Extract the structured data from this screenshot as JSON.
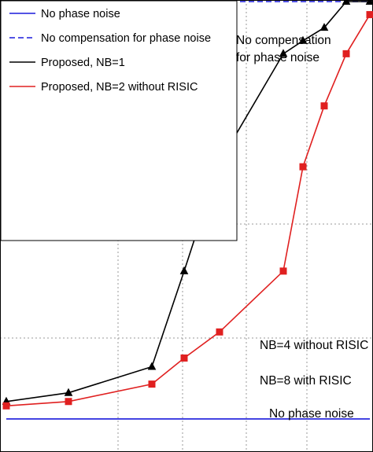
{
  "chart_data": {
    "type": "line",
    "title": "",
    "xlabel": "",
    "ylabel": "",
    "x": [
      1,
      2,
      3,
      4,
      5,
      6,
      7,
      8,
      9,
      10
    ],
    "xlim": [
      1,
      10
    ],
    "ylim": [
      0,
      1
    ],
    "grid": true,
    "legend_position": "top-left",
    "series": [
      {
        "name": "No phase noise",
        "label_html": "No phase noise",
        "color": "#1a1adc",
        "dash": "",
        "marker": "none",
        "values": [
          0.04,
          0.04,
          0.04,
          0.04,
          0.04,
          0.04,
          0.04,
          0.04,
          0.04,
          0.04
        ]
      },
      {
        "name": "No compensation for phase noise",
        "label_html": "No compensation for phase noise",
        "color": "#1a1adc",
        "dash": "7,4",
        "marker": "none",
        "values": [
          1.0,
          1.0,
          1.0,
          1.0,
          1.0,
          1.0,
          1.0,
          1.0,
          1.0,
          1.0
        ]
      },
      {
        "name": "Proposed, NB=1",
        "label_html": "Proposed, <i>N</i><sub>B</sub>=1",
        "color": "#000000",
        "dash": "",
        "marker": "triangle-up",
        "filled": true,
        "values": [
          0.08,
          0.1,
          0.16,
          0.38,
          0.63,
          0.88,
          0.91,
          0.94,
          1.0,
          1.0
        ]
      },
      {
        "name": "Proposed, NB=2 without RISIC",
        "label_html": "Proposed, <i>N</i><sub>B</sub>=2 without RISIC",
        "color": "#e02020",
        "dash": "",
        "marker": "square",
        "filled": true,
        "values": [
          0.07,
          0.08,
          0.12,
          0.18,
          0.24,
          0.38,
          0.62,
          0.76,
          0.88,
          0.97
        ]
      }
    ]
  },
  "legend": {
    "items": [
      {
        "html": "No phase noise"
      },
      {
        "html": "No compensation for phase noise"
      },
      {
        "html": "Proposed, <tspan font-style='italic'>N</tspan><tspan baseline-shift='sub' font-size='11'>B</tspan>=1"
      }
    ]
  },
  "annotations": {
    "no_comp_line1": "No compensation",
    "no_comp_line2": "for phase noise",
    "nb4_label": "NB=4 without RISIC",
    "nb8_label": "NB=8 with RISIC",
    "no_pn_label": "No phase noise"
  }
}
